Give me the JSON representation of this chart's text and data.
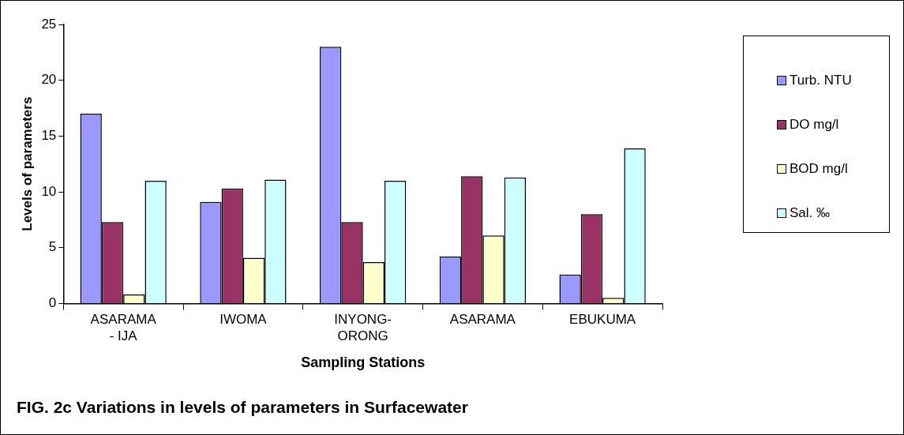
{
  "chart_data": {
    "type": "bar",
    "title": "FIG. 2c Variations in levels of parameters in Surfacewater",
    "xlabel": "Sampling Stations",
    "ylabel": "Levels of parameters",
    "categories": [
      "ASARAMA - IJA",
      "IWOMA",
      "INYONG-ORONG",
      "ASARAMA",
      "EBUKUMA"
    ],
    "series": [
      {
        "name": "Turb. NTU",
        "color": "#9999ff",
        "values": [
          17.0,
          9.1,
          23.0,
          4.2,
          2.6
        ]
      },
      {
        "name": "DO mg/l",
        "color": "#993366",
        "values": [
          7.3,
          10.3,
          7.3,
          11.4,
          8.0
        ]
      },
      {
        "name": "BOD mg/l",
        "color": "#ffffcc",
        "values": [
          0.8,
          4.1,
          3.7,
          6.1,
          0.5
        ]
      },
      {
        "name": "Sal. ‰",
        "color": "#ccffff",
        "values": [
          11.0,
          11.1,
          11.0,
          11.3,
          13.9
        ]
      }
    ],
    "ylim": [
      0,
      25
    ],
    "yticks": [
      0,
      5,
      10,
      15,
      20,
      25
    ],
    "grid": false,
    "legend": "right"
  }
}
